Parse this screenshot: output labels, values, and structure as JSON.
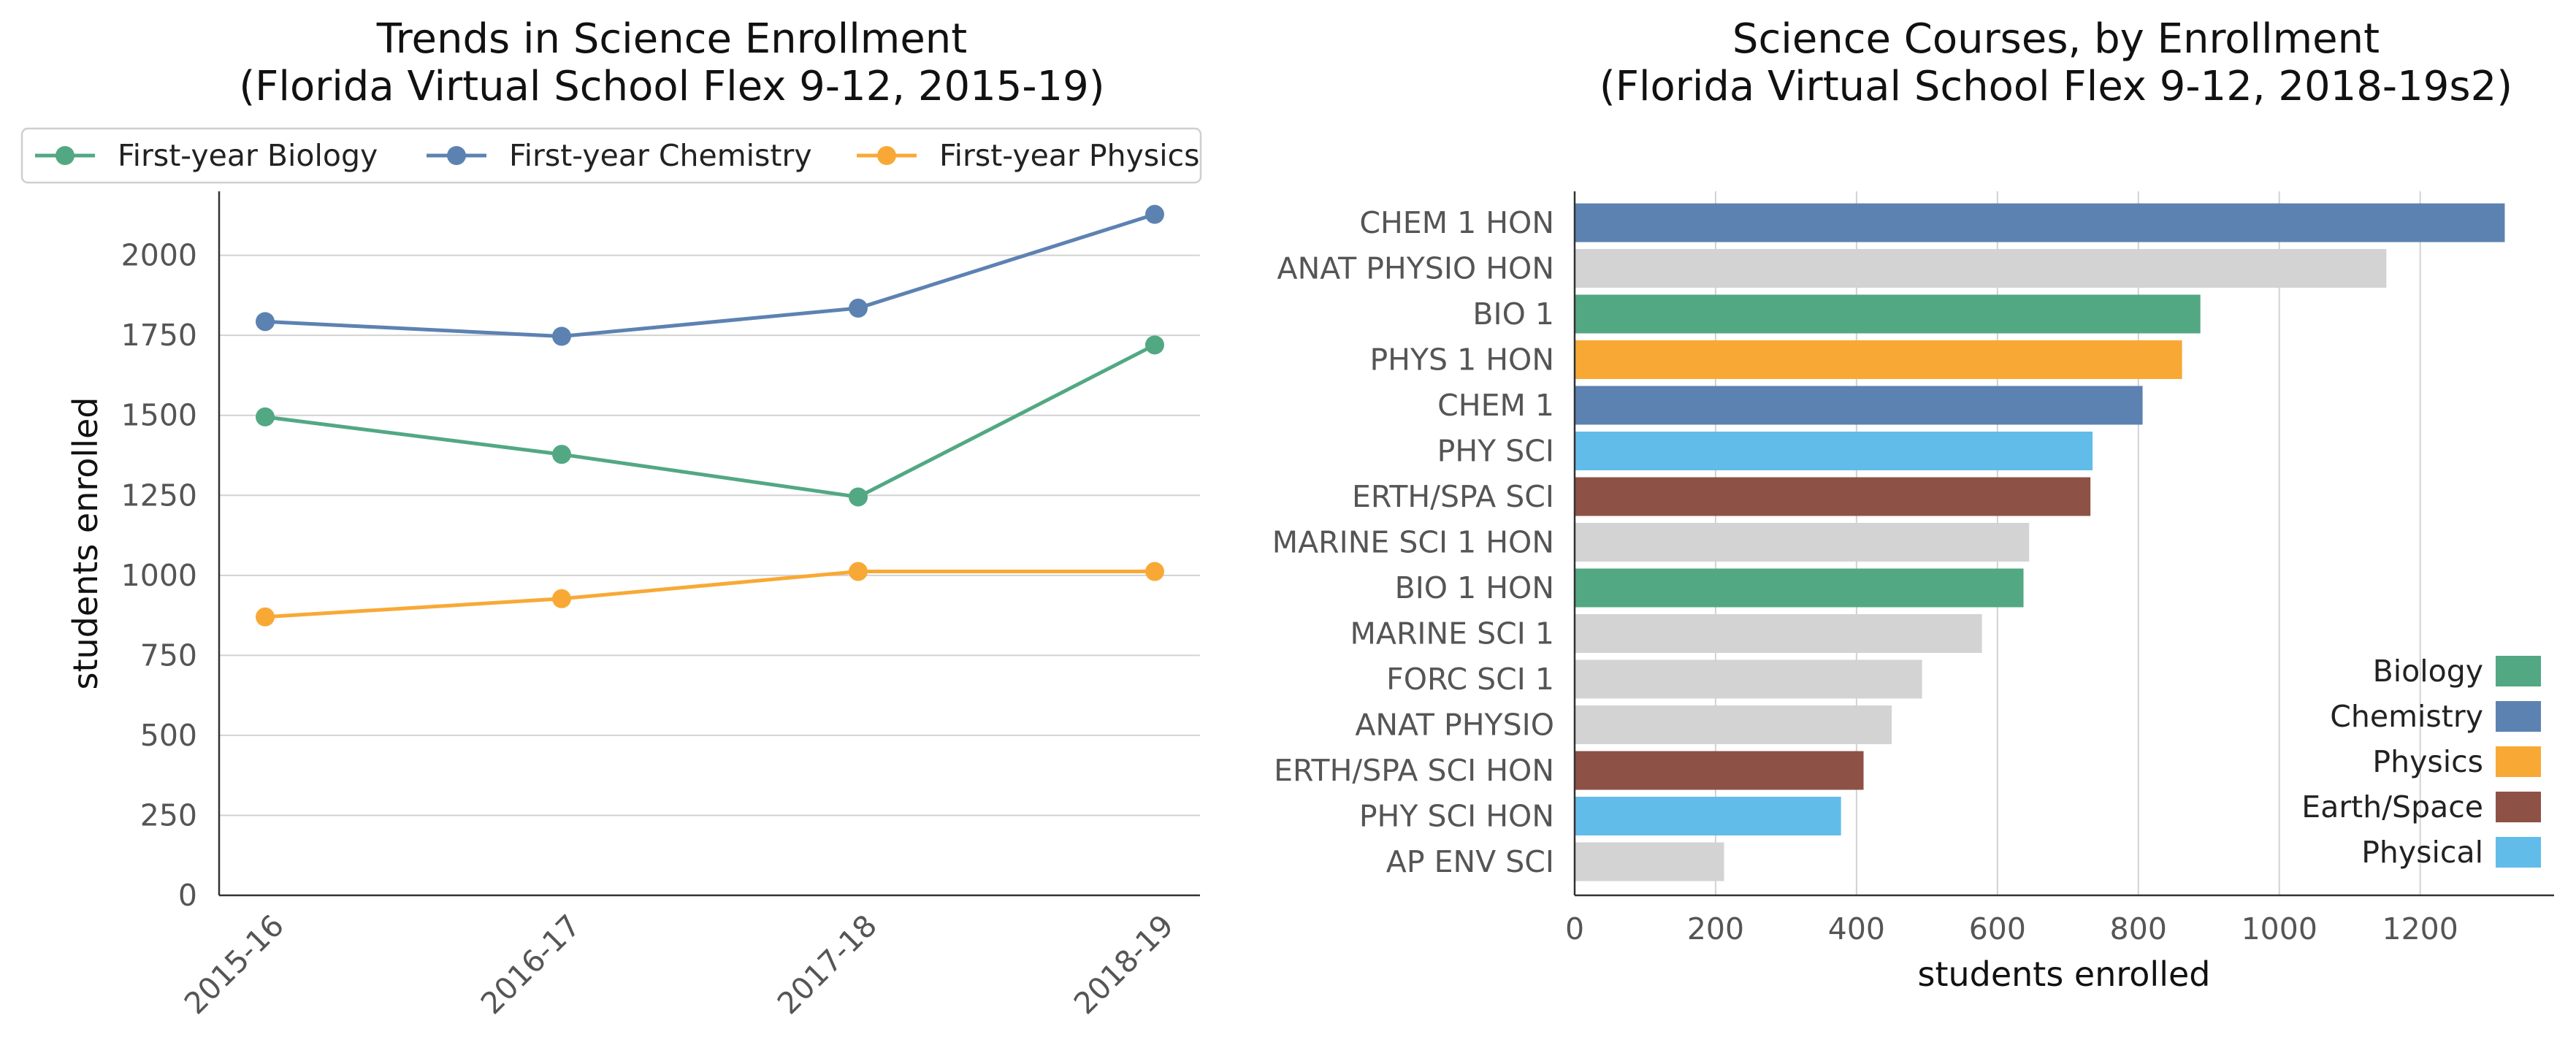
{
  "chart_data": [
    {
      "type": "line",
      "title": "Trends in Science Enrollment",
      "subtitle": "(Florida Virtual School Flex 9-12, 2015-19)",
      "xlabel": "",
      "ylabel": "students enrolled",
      "categories": [
        "2015-16",
        "2016-17",
        "2017-18",
        "2018-19"
      ],
      "ylim": [
        0,
        2200
      ],
      "yticks": [
        0,
        250,
        500,
        750,
        1000,
        1250,
        1500,
        1750,
        2000
      ],
      "grid": "horizontal",
      "legend_position": "top",
      "series": [
        {
          "name": "First-year Biology",
          "color": "#52a883",
          "values": [
            1495,
            1378,
            1245,
            1720
          ]
        },
        {
          "name": "First-year Chemistry",
          "color": "#5c82b2",
          "values": [
            1793,
            1747,
            1835,
            2128
          ]
        },
        {
          "name": "First-year Physics",
          "color": "#f8a935",
          "values": [
            870,
            927,
            1012,
            1012
          ]
        }
      ]
    },
    {
      "type": "bar",
      "orientation": "horizontal",
      "title": "Science Courses, by Enrollment",
      "subtitle": "(Florida Virtual School Flex 9-12, 2018-19s2)",
      "xlabel": "students enrolled",
      "ylabel": "",
      "xlim": [
        0,
        1390
      ],
      "xticks": [
        0,
        200,
        400,
        600,
        800,
        1000,
        1200
      ],
      "grid": "vertical",
      "legend_position": "bottom-right",
      "categories": [
        "CHEM 1 HON",
        "ANAT PHYSIO HON",
        "BIO 1",
        "PHYS 1 HON",
        "CHEM 1",
        "PHY SCI",
        "ERTH/SPA SCI",
        "MARINE SCI 1 HON",
        "BIO 1 HON",
        "MARINE SCI 1",
        "FORC SCI 1",
        "ANAT PHYSIO",
        "ERTH/SPA SCI HON",
        "PHY SCI HON",
        "AP ENV SCI"
      ],
      "values": [
        1320,
        1152,
        888,
        862,
        806,
        735,
        732,
        645,
        637,
        578,
        493,
        450,
        410,
        378,
        212
      ],
      "bar_groups": [
        "Chemistry",
        "Other",
        "Biology",
        "Physics",
        "Chemistry",
        "Physical",
        "Earth/Space",
        "Other",
        "Biology",
        "Other",
        "Other",
        "Other",
        "Earth/Space",
        "Physical",
        "Other"
      ],
      "group_colors": {
        "Biology": "#52a883",
        "Chemistry": "#5c82b2",
        "Physics": "#f8a935",
        "Earth/Space": "#8e5146",
        "Physical": "#62bcea",
        "Other": "#d3d3d3"
      },
      "legend": [
        "Biology",
        "Chemistry",
        "Physics",
        "Earth/Space",
        "Physical"
      ]
    }
  ]
}
